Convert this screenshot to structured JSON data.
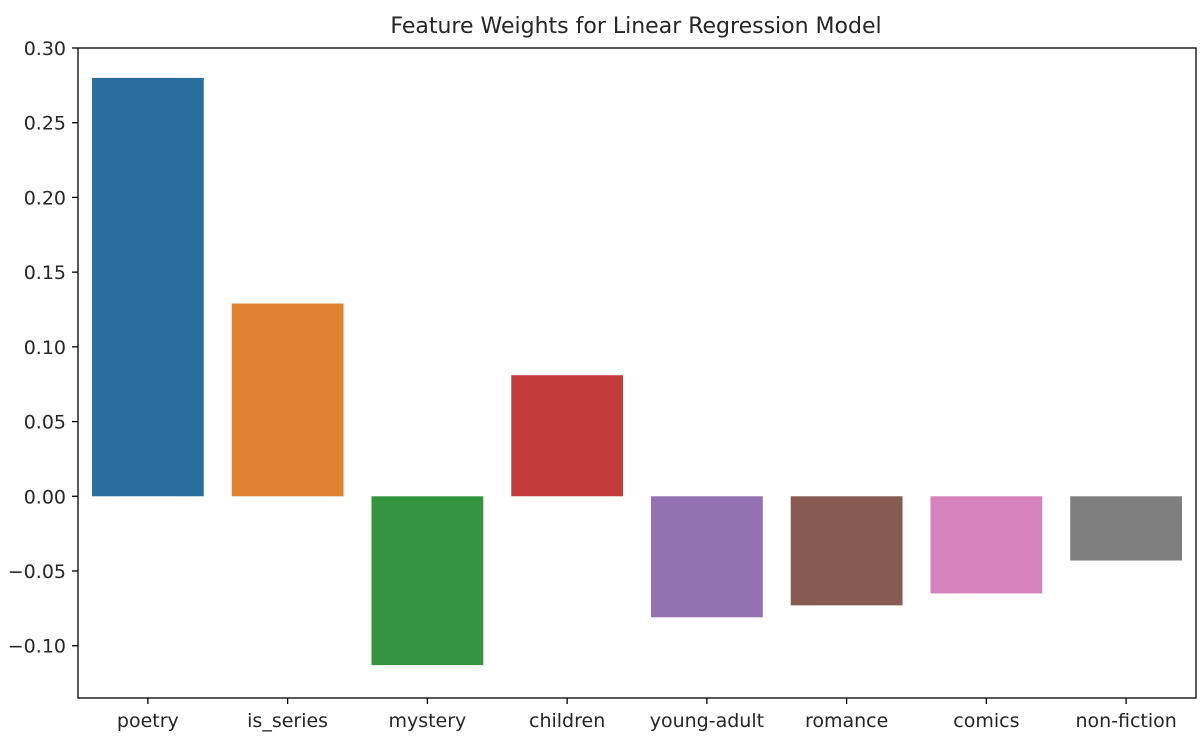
{
  "chart_data": {
    "type": "bar",
    "title": "Feature Weights for Linear Regression Model",
    "xlabel": "",
    "ylabel": "",
    "categories": [
      "poetry",
      "is_series",
      "mystery",
      "children",
      "young-adult",
      "romance",
      "comics",
      "non-fiction"
    ],
    "values": [
      0.28,
      0.129,
      -0.113,
      0.081,
      -0.081,
      -0.073,
      -0.065,
      -0.043
    ],
    "colors": [
      "#2a6f9b",
      "#e08231",
      "#359440",
      "#c23c3c",
      "#9472b2",
      "#875b52",
      "#d683bd",
      "#7f7f7f"
    ],
    "ylim": [
      -0.135,
      0.3
    ],
    "yticks": [
      -0.1,
      -0.05,
      0.0,
      0.05,
      0.1,
      0.15,
      0.2,
      0.25,
      0.3
    ],
    "ytick_labels": [
      "−0.10",
      "−0.05",
      "0.00",
      "0.05",
      "0.10",
      "0.15",
      "0.20",
      "0.25",
      "0.30"
    ],
    "grid": false,
    "legend": "none"
  }
}
